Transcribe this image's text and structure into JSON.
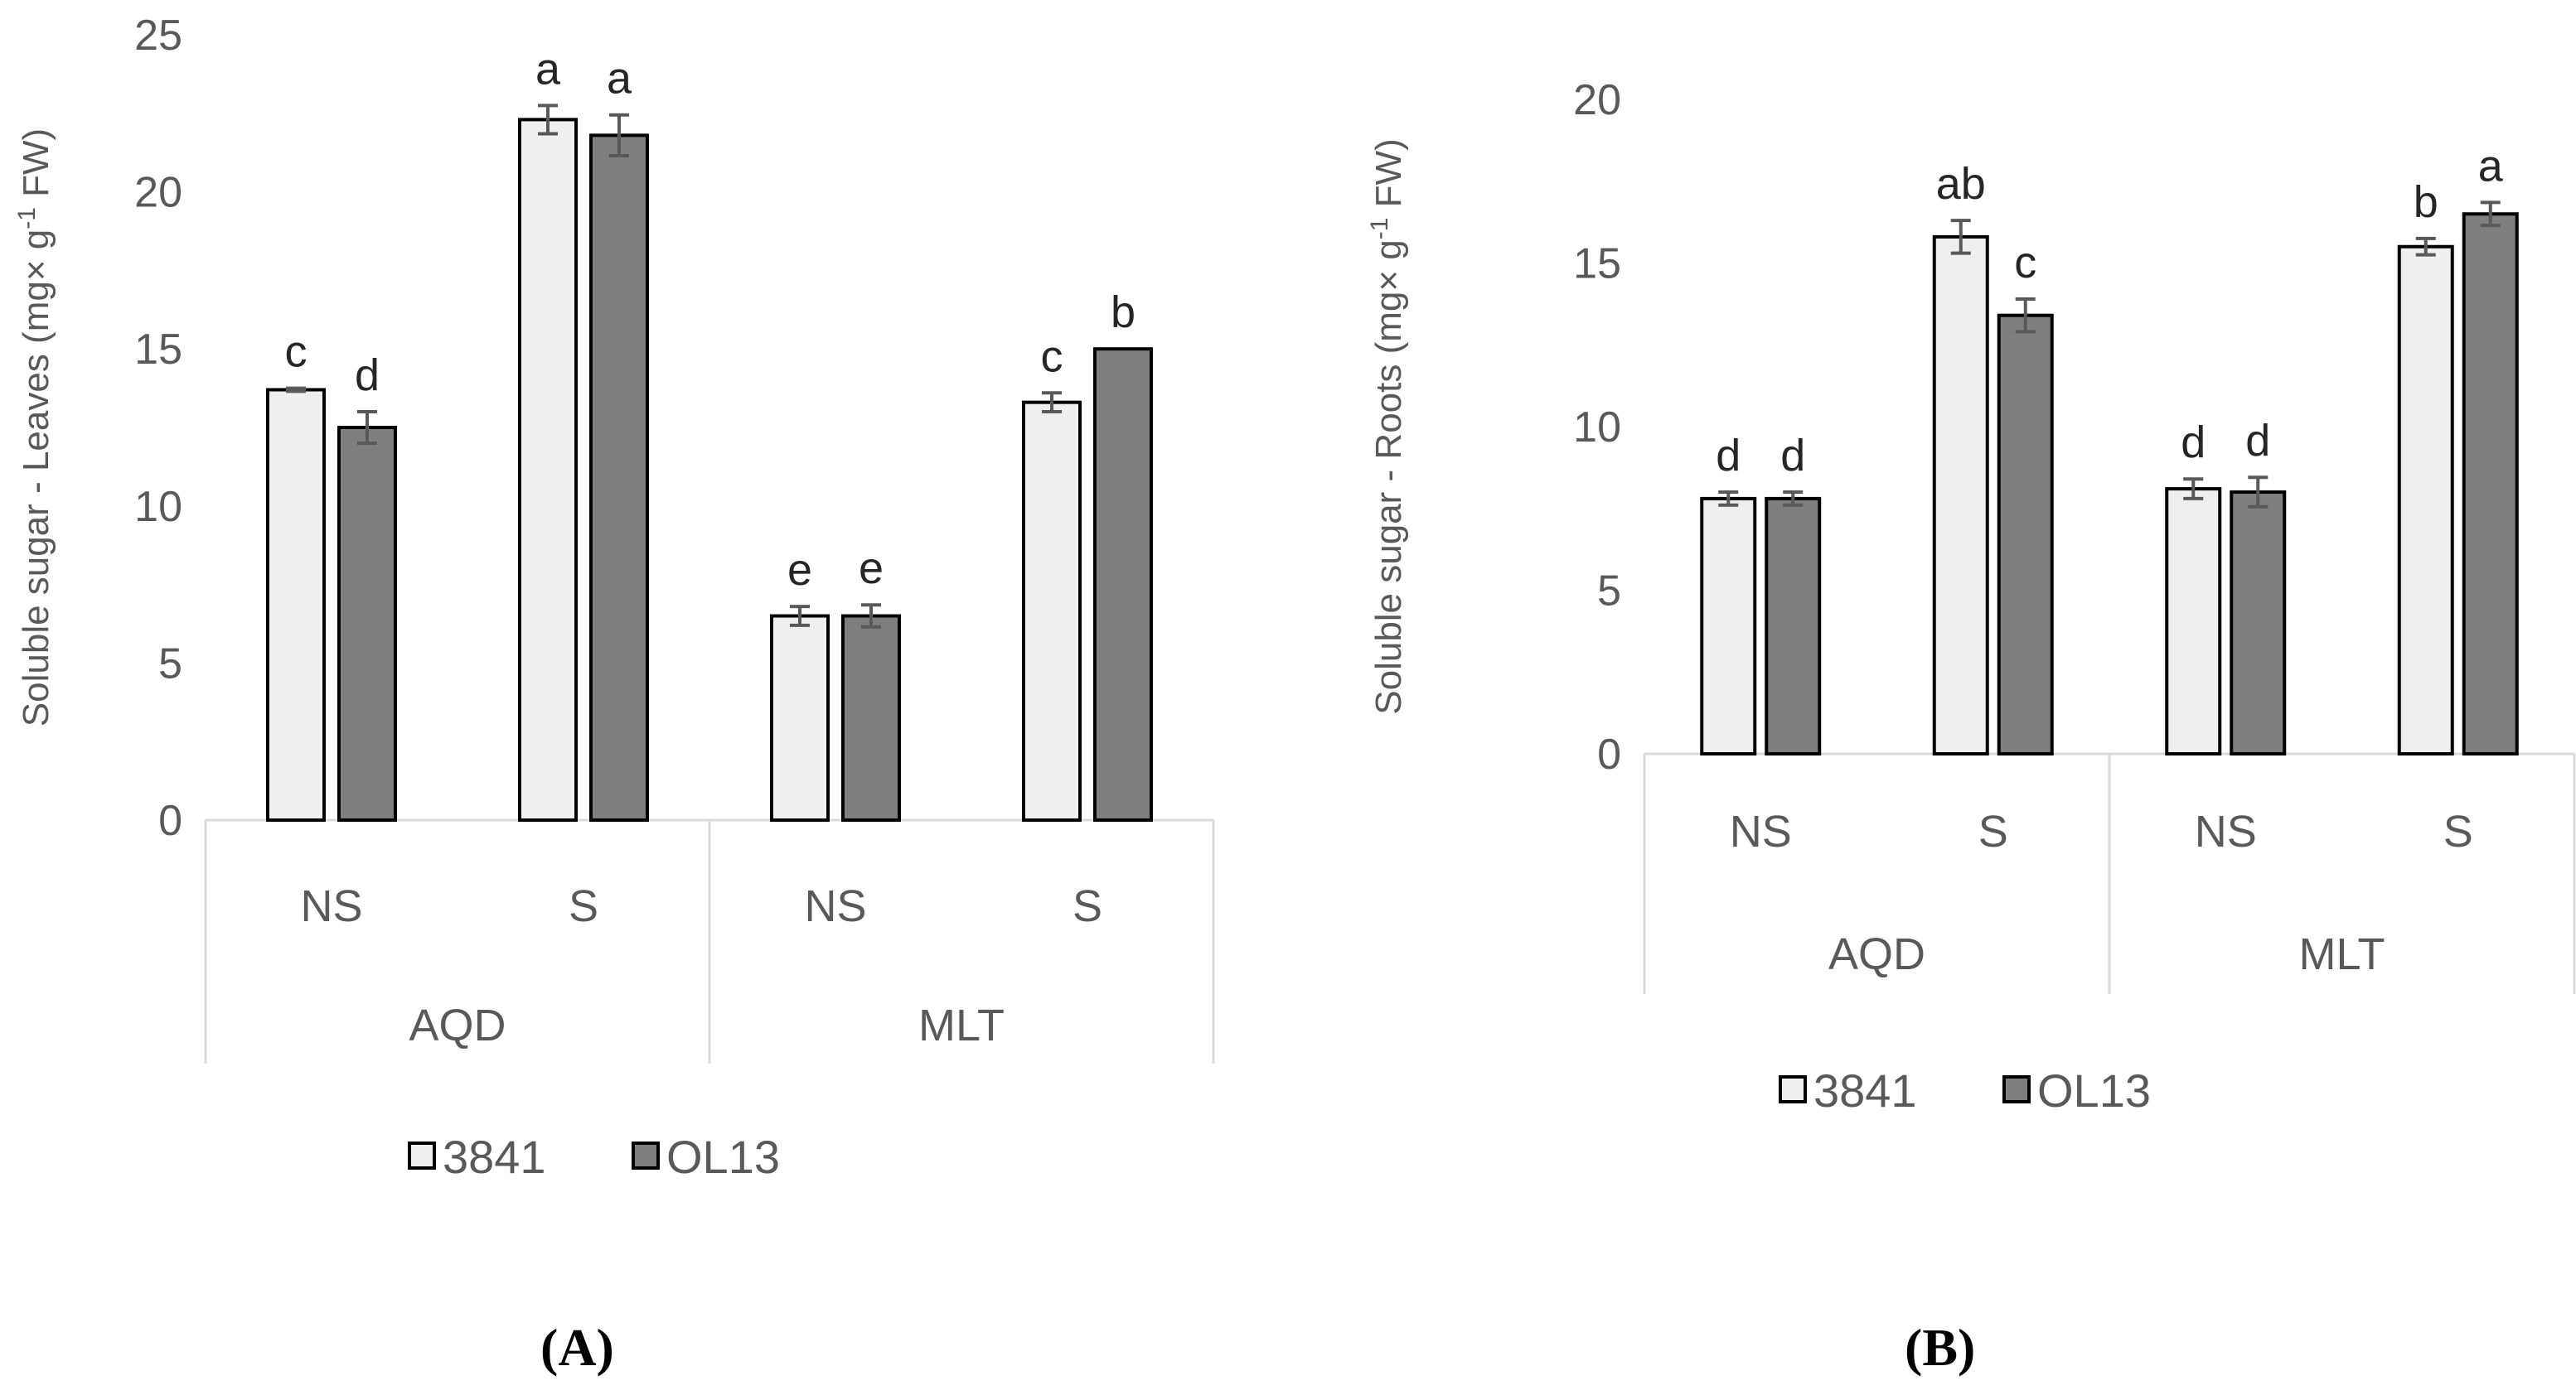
{
  "chart_data": [
    {
      "type": "bar",
      "panel": "A",
      "title": "",
      "ylabel": "Soluble sugar - Leaves (mg× g",
      "ylabel_sup": "-1",
      "ylabel_tail": " FW)",
      "ylim": [
        0,
        25
      ],
      "yticks": [
        0,
        5,
        10,
        15,
        20,
        25
      ],
      "groups": [
        "AQD",
        "MLT"
      ],
      "categories": [
        "NS",
        "S",
        "NS",
        "S"
      ],
      "series": [
        {
          "name": "3841",
          "color": "#efefef",
          "values": [
            13.7,
            22.3,
            6.5,
            13.3
          ],
          "errors": [
            0.05,
            0.45,
            0.3,
            0.3
          ],
          "letters": [
            "c",
            "a",
            "e",
            "c"
          ]
        },
        {
          "name": "OL13",
          "color": "#7f7f7f",
          "values": [
            12.5,
            21.8,
            6.5,
            15.0
          ],
          "errors": [
            0.5,
            0.65,
            0.35,
            0.0
          ],
          "letters": [
            "d",
            "a",
            "e",
            "b"
          ]
        }
      ]
    },
    {
      "type": "bar",
      "panel": "B",
      "title": "",
      "ylabel": "Soluble sugar - Roots (mg× g",
      "ylabel_sup": "-1",
      "ylabel_tail": " FW)",
      "ylim": [
        0,
        20
      ],
      "yticks": [
        0,
        5,
        10,
        15,
        20
      ],
      "groups": [
        "AQD",
        "MLT"
      ],
      "categories": [
        "NS",
        "S",
        "NS",
        "S"
      ],
      "series": [
        {
          "name": "3841",
          "color": "#efefef",
          "values": [
            7.8,
            15.8,
            8.1,
            15.5
          ],
          "errors": [
            0.2,
            0.5,
            0.3,
            0.25
          ],
          "letters": [
            "d",
            "ab",
            "d",
            "b"
          ]
        },
        {
          "name": "OL13",
          "color": "#7f7f7f",
          "values": [
            7.8,
            13.4,
            8.0,
            16.5
          ],
          "errors": [
            0.2,
            0.5,
            0.45,
            0.35
          ],
          "letters": [
            "d",
            "c",
            "d",
            "a"
          ]
        }
      ]
    }
  ],
  "labels": {
    "panel_a": "(A)",
    "panel_b": "(B)"
  },
  "colors": {
    "axis": "#d9d9d9",
    "text": "#595959",
    "bar_border": "#000000",
    "error_bar": "#595959"
  }
}
